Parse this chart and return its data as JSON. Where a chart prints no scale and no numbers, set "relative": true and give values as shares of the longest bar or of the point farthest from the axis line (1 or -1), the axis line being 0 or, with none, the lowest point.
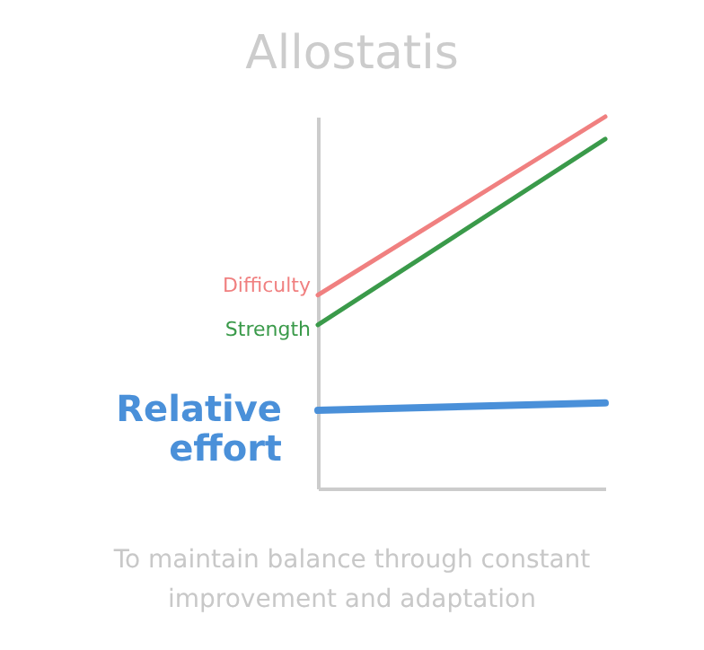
{
  "chart_data": {
    "type": "line",
    "title": "Allostatis",
    "relative": true,
    "categories": [
      null,
      null
    ],
    "series": [
      {
        "name": "Difficulty",
        "color": "#f08080",
        "values": [
          0.52,
          1.0
        ]
      },
      {
        "name": "Strength",
        "color": "#3a9a4a",
        "values": [
          0.44,
          0.94
        ]
      },
      {
        "name": "Relative effort",
        "color": "#4a90d9",
        "values": [
          0.21,
          0.23
        ]
      }
    ],
    "annotations": [
      "To maintain balance through constant improvement and adaptation"
    ],
    "grid": false,
    "marker": "none",
    "line_style": "solid"
  }
}
